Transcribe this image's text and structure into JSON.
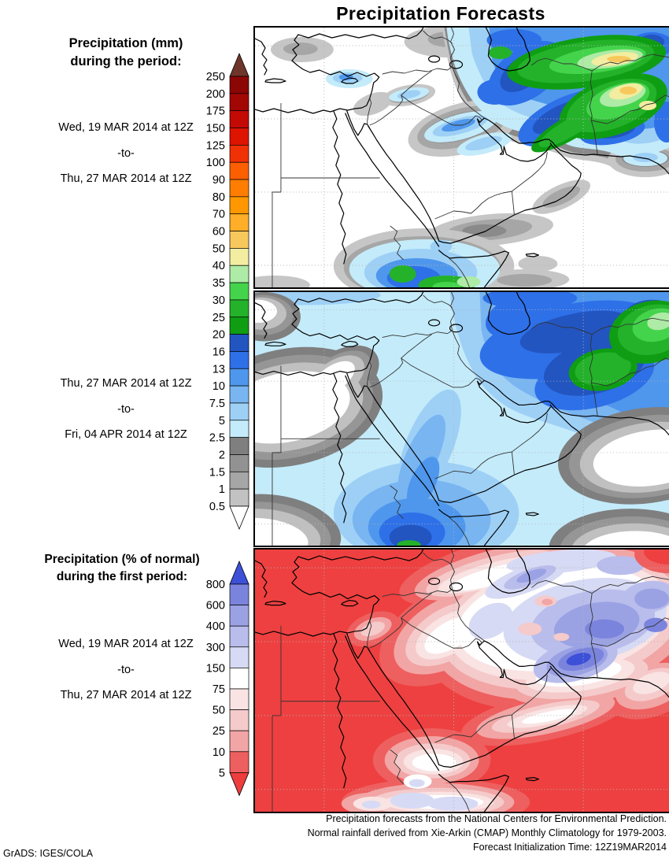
{
  "title": "Precipitation Forecasts",
  "credit": "GrADS: IGES/COLA",
  "left_panel": {
    "mm_heading_line1": "Precipitation (mm)",
    "mm_heading_line2": "during the period:",
    "period1": {
      "from": "Wed, 19 MAR 2014 at 12Z",
      "separator": "-to-",
      "to": "Thu, 27 MAR 2014 at 12Z"
    },
    "period2": {
      "from": "Thu, 27 MAR 2014 at 12Z",
      "separator": "-to-",
      "to": "Fri, 04 APR 2014 at 12Z"
    },
    "pct_heading_line1": "Precipitation (% of normal)",
    "pct_heading_line2": "during the first period:",
    "period3": {
      "from": "Wed, 19 MAR 2014 at 12Z",
      "separator": "-to-",
      "to": "Thu, 27 MAR 2014 at 12Z"
    }
  },
  "colorbars": {
    "mm": {
      "labels": [
        "250",
        "200",
        "175",
        "150",
        "125",
        "100",
        "90",
        "80",
        "70",
        "60",
        "50",
        "40",
        "35",
        "30",
        "25",
        "20",
        "16",
        "13",
        "10",
        "7.5",
        "5",
        "2.5",
        "2",
        "1.5",
        "1",
        "0.5"
      ],
      "colors": [
        "#8b0605",
        "#a30704",
        "#c40a04",
        "#de1400",
        "#f03105",
        "#fc5f00",
        "#ff7d00",
        "#ff9800",
        "#ffae28",
        "#f7c95c",
        "#f2eda0",
        "#aeeba6",
        "#44d44c",
        "#24b22a",
        "#0f9d14",
        "#2255c0",
        "#2e70e8",
        "#4e97ec",
        "#78b5f1",
        "#9ed0f6",
        "#c4ebfa",
        "#7f7f7f",
        "#929292",
        "#a6a6a6",
        "#c2c2c2"
      ],
      "arrow_top_color": "#6e352b",
      "arrow_bottom_color": "#ffffff"
    },
    "pct": {
      "labels": [
        "800",
        "600",
        "400",
        "300",
        "150",
        "75",
        "50",
        "25",
        "10",
        "5"
      ],
      "colors": [
        "#7b84dd",
        "#9ba2e4",
        "#b9bdec",
        "#d7daf4",
        "#ffffff",
        "#f9e3e3",
        "#f5caca",
        "#f2a5a5",
        "#ee5f5f"
      ],
      "arrow_top_color": "#3c50d8",
      "arrow_bottom_color": "#ee3d3d"
    }
  },
  "footer": {
    "line1": "Precipitation forecasts from the National Centers for Environmental Prediction.",
    "line2": "Normal rainfall derived from Xie-Arkin (CMAP) Monthly Climatology for 1979-2003.",
    "line3": "Forecast Initialization Time: 12Z19MAR2014"
  }
}
